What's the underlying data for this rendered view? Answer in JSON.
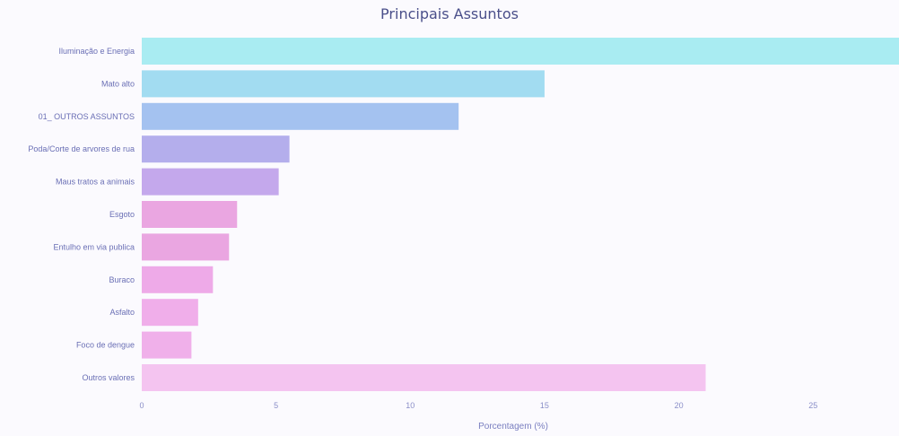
{
  "chart_data": {
    "type": "bar",
    "orientation": "horizontal",
    "title": "Principais Assuntos",
    "xlabel": "Porcentagem (%)",
    "ylabel": "",
    "xlim": [
      0,
      28.2
    ],
    "xticks": [
      "0",
      "5",
      "10",
      "15",
      "20",
      "25"
    ],
    "grid": false,
    "legend": "none",
    "categories": [
      "Iluminação e Energia",
      "Mato alto",
      "01_ OUTROS ASSUNTOS",
      "Poda/Corte de arvores de rua",
      "Maus tratos a animais",
      "Esgoto",
      "Entulho em via publica",
      "Buraco",
      "Asfalto",
      "Foco de dengue",
      "Outros valores"
    ],
    "values": [
      28.5,
      15.0,
      11.8,
      5.5,
      5.1,
      3.55,
      3.25,
      2.65,
      2.1,
      1.85,
      21.0
    ],
    "colors": [
      "#a9ecf2",
      "#a2dcf1",
      "#a4c2f0",
      "#b4aeec",
      "#c4a8ec",
      "#eaa6e1",
      "#eaa6e1",
      "#eeaae8",
      "#f0aeea",
      "#f0b0ea",
      "#f4c4f0"
    ]
  }
}
